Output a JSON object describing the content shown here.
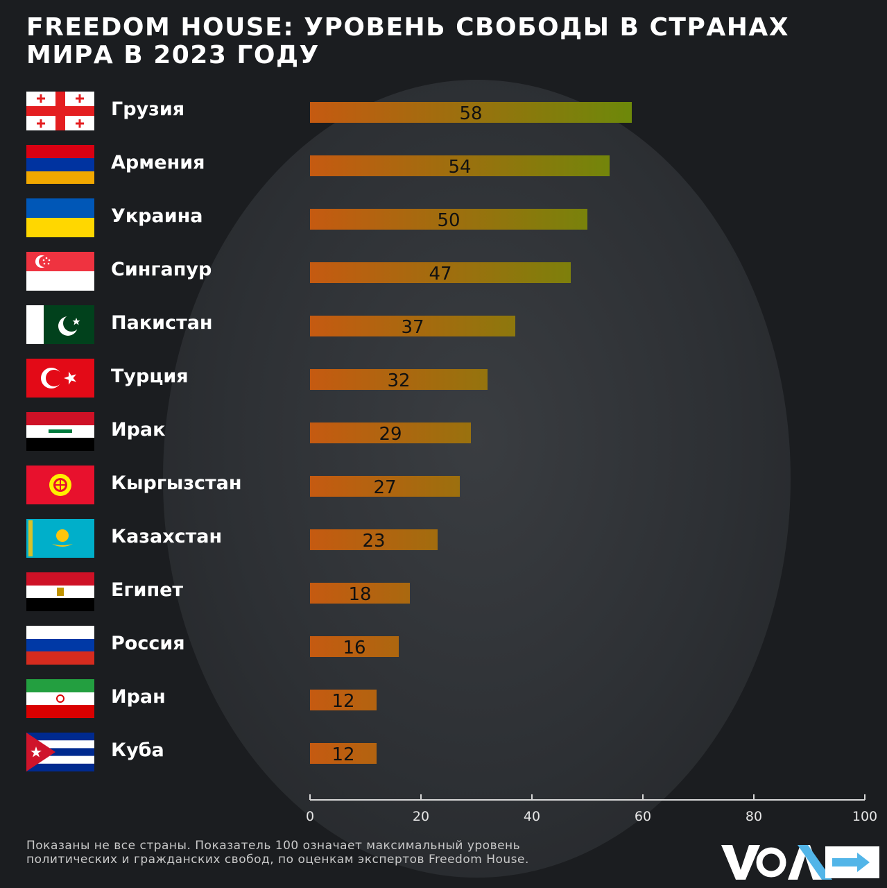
{
  "title_lines": [
    "FREEDOM HOUSE: УРОВЕНЬ СВОБОДЫ В СТРАНАХ",
    "МИРА В 2023 ГОДУ"
  ],
  "chart_data": {
    "type": "bar",
    "orientation": "horizontal",
    "categories": [
      "Грузия",
      "Армения",
      "Украина",
      "Сингапур",
      "Пакистан",
      "Турция",
      "Ирак",
      "Кыргызстан",
      "Казахстан",
      "Египет",
      "Россия",
      "Иран",
      "Куба"
    ],
    "values": [
      58,
      54,
      50,
      47,
      37,
      32,
      29,
      27,
      23,
      18,
      16,
      12,
      12
    ],
    "xlim": [
      0,
      100
    ],
    "xticks": [
      "0",
      "20",
      "40",
      "60",
      "80",
      "100"
    ],
    "bar_gradient": [
      "#c55a11",
      "#6a8a0a"
    ],
    "grid": false,
    "legend": "none"
  },
  "flags": [
    "georgia-flag",
    "armenia-flag",
    "ukraine-flag",
    "singapore-flag",
    "pakistan-flag",
    "turkey-flag",
    "iraq-flag",
    "kyrgyzstan-flag",
    "kazakhstan-flag",
    "egypt-flag",
    "russia-flag",
    "iran-flag",
    "cuba-flag"
  ],
  "footnote_lines": [
    "Показаны не все страны. Показатель 100 означает максимальный уровень",
    "политических и гражданских свобод, по оценкам экспертов Freedom House."
  ],
  "logo": {
    "text": "VOA",
    "icon": "voa-logo",
    "accent": "#52b5e8"
  },
  "colors": {
    "background": "#1b1d20",
    "globe": "#2d3034"
  }
}
